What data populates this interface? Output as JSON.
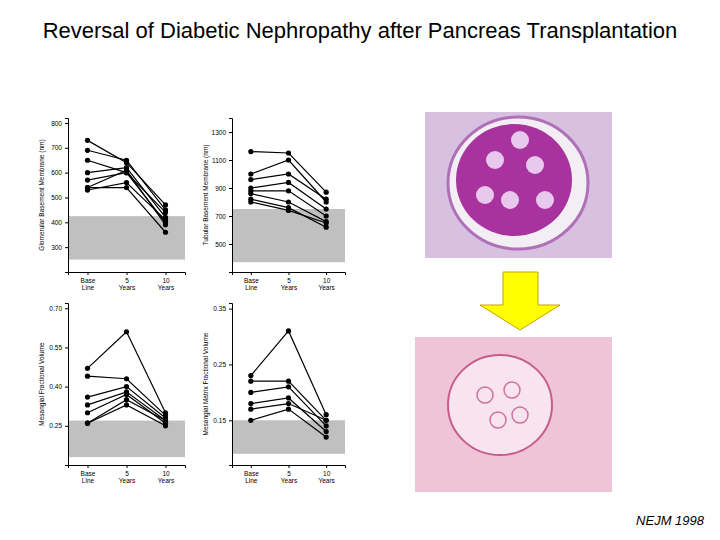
{
  "title": "Reversal of Diabetic Nephropathy after Pancreas Transplantation",
  "source": "NEJM 1998",
  "chart_data": [
    {
      "type": "line",
      "y_label": "Glomerular Basement Membrane (nm)",
      "categories": [
        "Base Line",
        "5 Years",
        "10 Years"
      ],
      "color": "#000000",
      "marker": "circle",
      "ylim": [
        200,
        820
      ],
      "yticks": [
        300,
        400,
        500,
        600,
        700,
        800
      ],
      "normal_range": [
        250,
        425
      ],
      "series": [
        {
          "values": [
            730,
            640,
            470
          ]
        },
        {
          "values": [
            690,
            650,
            450
          ]
        },
        {
          "values": [
            650,
            600,
            440
          ]
        },
        {
          "values": [
            600,
            620,
            420
          ]
        },
        {
          "values": [
            570,
            600,
            400
          ]
        },
        {
          "values": [
            540,
            610,
            390
          ]
        },
        {
          "values": [
            530,
            560,
            410
          ]
        },
        {
          "values": [
            540,
            540,
            360
          ]
        }
      ]
    },
    {
      "type": "line",
      "y_label": "Tubular Basement Membrane (nm)",
      "categories": [
        "Base Line",
        "5 Years",
        "10 Years"
      ],
      "color": "#000000",
      "marker": "circle",
      "ylim": [
        300,
        1400
      ],
      "yticks": [
        500,
        700,
        900,
        1100,
        1300
      ],
      "normal_range": [
        370,
        750
      ],
      "series": [
        {
          "values": [
            1160,
            1150,
            870
          ]
        },
        {
          "values": [
            1000,
            1100,
            800
          ]
        },
        {
          "values": [
            960,
            1000,
            820
          ]
        },
        {
          "values": [
            900,
            940,
            750
          ]
        },
        {
          "values": [
            880,
            880,
            700
          ]
        },
        {
          "values": [
            860,
            800,
            660
          ]
        },
        {
          "values": [
            820,
            760,
            620
          ]
        },
        {
          "values": [
            800,
            740,
            650
          ]
        }
      ]
    },
    {
      "type": "line",
      "y_label": "Mesangial Fractional Volume",
      "categories": [
        "Base Line",
        "5 Years",
        "10 Years"
      ],
      "color": "#000000",
      "marker": "circle",
      "ylim": [
        0.1,
        0.72
      ],
      "yticks": [
        0.25,
        {
          "value": 0.4,
          "label": "0.40"
        },
        0.55,
        {
          "value": 0.7,
          "label": "0.70"
        }
      ],
      "normal_range": [
        0.13,
        0.27
      ],
      "series": [
        {
          "values": [
            0.47,
            0.61,
            0.3
          ]
        },
        {
          "values": [
            0.44,
            0.43,
            0.29
          ]
        },
        {
          "values": [
            0.36,
            0.4,
            0.28
          ]
        },
        {
          "values": [
            0.33,
            0.38,
            0.27
          ]
        },
        {
          "values": [
            0.3,
            0.37,
            0.26
          ]
        },
        {
          "values": [
            0.26,
            0.35,
            0.27
          ]
        },
        {
          "values": [
            0.26,
            0.33,
            0.25
          ]
        }
      ]
    },
    {
      "type": "line",
      "y_label": "Mesangial Matrix Fractional Volume",
      "categories": [
        "Base Line",
        "5 Years",
        "10 Years"
      ],
      "color": "#000000",
      "marker": "circle",
      "ylim": [
        0.07,
        0.36
      ],
      "yticks": [
        0.15,
        0.25,
        0.35
      ],
      "normal_range": [
        0.09,
        0.15
      ],
      "series": [
        {
          "values": [
            0.23,
            0.31,
            0.16
          ]
        },
        {
          "values": [
            0.22,
            0.22,
            0.15
          ]
        },
        {
          "values": [
            0.2,
            0.21,
            0.14
          ]
        },
        {
          "values": [
            0.18,
            0.19,
            0.13
          ]
        },
        {
          "values": [
            0.17,
            0.18,
            0.15
          ]
        },
        {
          "values": [
            0.15,
            0.17,
            0.12
          ]
        }
      ]
    }
  ]
}
